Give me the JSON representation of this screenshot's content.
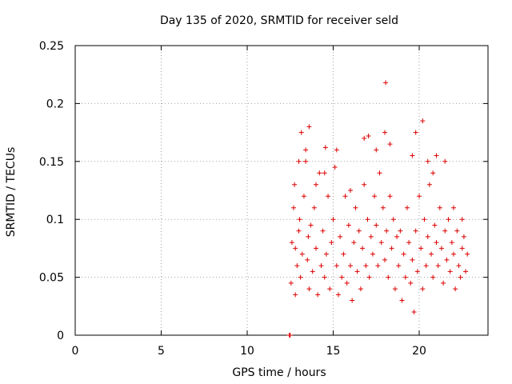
{
  "chart_data": {
    "type": "scatter",
    "title": "Day 135 of 2020, SRMTID for receiver seld",
    "xlabel": "GPS time / hours",
    "ylabel": "SRMTID / TECUs",
    "xlim": [
      0,
      24
    ],
    "ylim": [
      0,
      0.25
    ],
    "xticks": [
      0,
      5,
      10,
      15,
      20
    ],
    "yticks": [
      0,
      0.05,
      0.1,
      0.15,
      0.2,
      0.25
    ],
    "xtick_labels": [
      "0",
      "5",
      "10",
      "15",
      "20"
    ],
    "ytick_labels": [
      "0",
      "0.05",
      "0.1",
      "0.15",
      "0.2",
      "0.25"
    ],
    "grid": true,
    "marker": "+",
    "series": [
      {
        "name": "SRMTID",
        "color": "#dd0000",
        "x": [
          12.45,
          12.5,
          12.55,
          12.6,
          12.7,
          12.75,
          12.8,
          12.9,
          13.0,
          13.05,
          13.1,
          13.2,
          13.3,
          13.4,
          13.5,
          13.55,
          13.6,
          13.7,
          13.8,
          13.9,
          14.0,
          14.1,
          14.2,
          14.3,
          14.4,
          14.5,
          14.6,
          14.7,
          14.8,
          14.9,
          15.0,
          15.1,
          15.2,
          15.3,
          15.4,
          15.5,
          15.6,
          15.7,
          15.8,
          15.9,
          16.0,
          16.1,
          16.2,
          16.3,
          16.4,
          16.5,
          16.6,
          16.7,
          16.8,
          16.9,
          17.0,
          17.1,
          17.2,
          17.3,
          17.4,
          17.5,
          17.6,
          17.7,
          17.8,
          17.9,
          18.0,
          18.1,
          18.2,
          18.3,
          18.4,
          18.5,
          18.6,
          18.7,
          18.8,
          18.9,
          19.0,
          19.1,
          19.2,
          19.3,
          19.4,
          19.5,
          19.6,
          19.7,
          19.8,
          19.9,
          20.0,
          20.1,
          20.2,
          20.3,
          20.4,
          20.5,
          20.6,
          20.7,
          20.8,
          20.9,
          21.0,
          21.1,
          21.2,
          21.3,
          21.4,
          21.5,
          21.6,
          21.7,
          21.8,
          21.9,
          22.0,
          22.1,
          22.2,
          22.3,
          22.4,
          22.5,
          22.6,
          22.7,
          22.8,
          12.8,
          13.0,
          13.4,
          13.6,
          14.0,
          14.5,
          15.2,
          16.0,
          16.8,
          17.5,
          18.0,
          18.3,
          19.8,
          20.2,
          20.5,
          20.8,
          21.0,
          21.5,
          22.0,
          22.5,
          18.05,
          13.15,
          14.55,
          17.05,
          19.6
        ],
        "y": [
          0.0,
          0.0,
          0.045,
          0.08,
          0.11,
          0.13,
          0.075,
          0.06,
          0.09,
          0.1,
          0.05,
          0.07,
          0.12,
          0.15,
          0.065,
          0.085,
          0.04,
          0.095,
          0.055,
          0.11,
          0.075,
          0.035,
          0.14,
          0.06,
          0.09,
          0.05,
          0.07,
          0.12,
          0.04,
          0.08,
          0.1,
          0.145,
          0.06,
          0.035,
          0.085,
          0.05,
          0.07,
          0.12,
          0.045,
          0.095,
          0.06,
          0.03,
          0.08,
          0.11,
          0.055,
          0.09,
          0.04,
          0.075,
          0.13,
          0.06,
          0.1,
          0.05,
          0.085,
          0.07,
          0.12,
          0.095,
          0.06,
          0.14,
          0.08,
          0.11,
          0.065,
          0.09,
          0.05,
          0.12,
          0.075,
          0.1,
          0.04,
          0.085,
          0.06,
          0.09,
          0.03,
          0.07,
          0.05,
          0.11,
          0.08,
          0.045,
          0.065,
          0.02,
          0.09,
          0.055,
          0.12,
          0.075,
          0.04,
          0.1,
          0.06,
          0.085,
          0.13,
          0.07,
          0.05,
          0.095,
          0.08,
          0.06,
          0.11,
          0.075,
          0.045,
          0.09,
          0.065,
          0.1,
          0.055,
          0.08,
          0.07,
          0.04,
          0.09,
          0.06,
          0.05,
          0.075,
          0.085,
          0.055,
          0.07,
          0.035,
          0.15,
          0.16,
          0.18,
          0.13,
          0.14,
          0.16,
          0.125,
          0.17,
          0.16,
          0.175,
          0.165,
          0.175,
          0.185,
          0.15,
          0.14,
          0.155,
          0.15,
          0.11,
          0.1,
          0.218,
          0.175,
          0.162,
          0.172,
          0.155
        ]
      }
    ]
  }
}
